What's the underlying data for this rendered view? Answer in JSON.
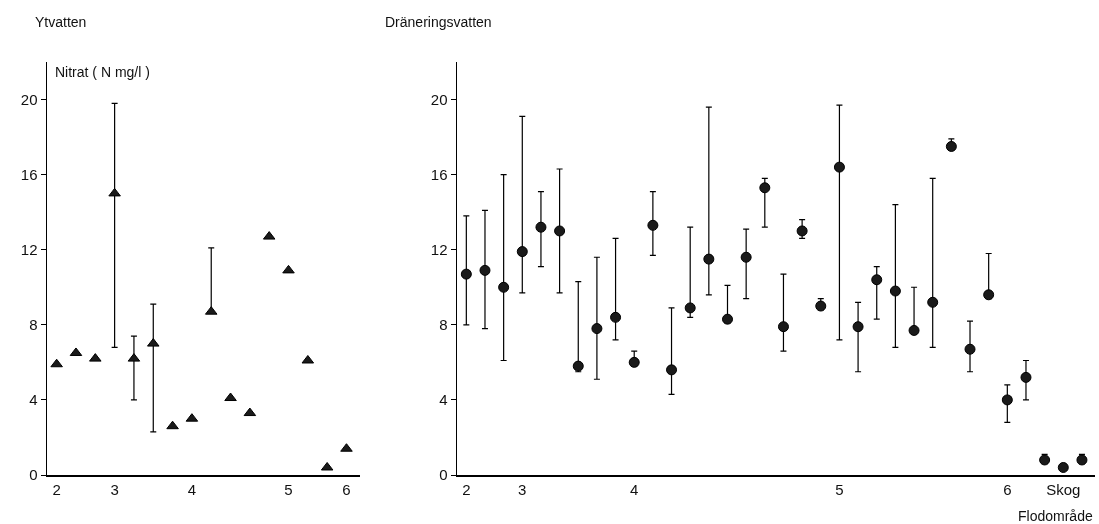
{
  "chart_data": [
    {
      "type": "scatter",
      "title": "Ytvatten",
      "ylabel": "Nitrat ( N mg/l )",
      "color": "#1a1a1a",
      "marker": "triangle",
      "grid": false,
      "categories": [
        "2",
        null,
        null,
        "3",
        null,
        null,
        null,
        "4",
        null,
        null,
        null,
        null,
        "5",
        null,
        null,
        "6"
      ],
      "values": [
        5.9,
        6.5,
        6.2,
        15.0,
        6.2,
        7.0,
        2.6,
        3.0,
        8.7,
        4.1,
        3.3,
        12.7,
        10.9,
        6.1,
        0.4,
        1.4
      ],
      "errors": [
        null,
        null,
        null,
        [
          6.8,
          19.8
        ],
        [
          4.0,
          7.4
        ],
        [
          2.3,
          9.1
        ],
        null,
        null,
        [
          8.7,
          12.1
        ],
        null,
        null,
        null,
        null,
        null,
        null,
        null
      ],
      "ylim": [
        0,
        22
      ],
      "yticks": [
        0,
        4,
        8,
        12,
        16,
        20
      ]
    },
    {
      "type": "scatter",
      "title": "Dräneringsvatten",
      "xlabel": "Flodområde",
      "color": "#1a1a1a",
      "marker": "circle",
      "grid": false,
      "categories": [
        "2",
        null,
        null,
        "3",
        null,
        null,
        null,
        null,
        null,
        "4",
        null,
        null,
        null,
        null,
        null,
        null,
        null,
        null,
        null,
        null,
        "5",
        null,
        null,
        null,
        null,
        null,
        null,
        null,
        null,
        "6",
        null,
        null,
        "Skog",
        null
      ],
      "values": [
        10.7,
        10.9,
        10.0,
        11.9,
        13.2,
        13.0,
        5.8,
        7.8,
        8.4,
        6.0,
        13.3,
        5.6,
        8.9,
        11.5,
        8.3,
        11.6,
        15.3,
        7.9,
        13.0,
        9.0,
        16.4,
        7.9,
        10.4,
        9.8,
        7.7,
        9.2,
        17.5,
        6.7,
        9.6,
        4.0,
        5.2,
        0.8,
        0.4,
        0.8
      ],
      "errors": [
        [
          8.0,
          13.8
        ],
        [
          7.8,
          14.1
        ],
        [
          6.1,
          16.0
        ],
        [
          9.7,
          19.1
        ],
        [
          11.1,
          15.1
        ],
        [
          9.7,
          16.3
        ],
        [
          5.5,
          10.3
        ],
        [
          5.1,
          11.6
        ],
        [
          7.2,
          12.6
        ],
        [
          5.8,
          6.6
        ],
        [
          11.7,
          15.1
        ],
        [
          4.3,
          8.9
        ],
        [
          8.4,
          13.2
        ],
        [
          9.6,
          19.6
        ],
        [
          8.1,
          10.1
        ],
        [
          9.4,
          13.1
        ],
        [
          13.2,
          15.8
        ],
        [
          6.6,
          10.7
        ],
        [
          12.6,
          13.6
        ],
        [
          8.8,
          9.4
        ],
        [
          7.2,
          19.7
        ],
        [
          5.5,
          9.2
        ],
        [
          8.3,
          11.1
        ],
        [
          6.8,
          14.4
        ],
        [
          7.5,
          10.0
        ],
        [
          6.8,
          15.8
        ],
        [
          17.3,
          17.9
        ],
        [
          5.5,
          8.2
        ],
        [
          9.4,
          11.8
        ],
        [
          2.8,
          4.8
        ],
        [
          4.0,
          6.1
        ],
        [
          0.6,
          1.1
        ],
        [
          0.3,
          0.6
        ],
        [
          0.6,
          1.1
        ]
      ],
      "ylim": [
        0,
        22
      ],
      "yticks": [
        0,
        4,
        8,
        12,
        16,
        20
      ]
    }
  ]
}
